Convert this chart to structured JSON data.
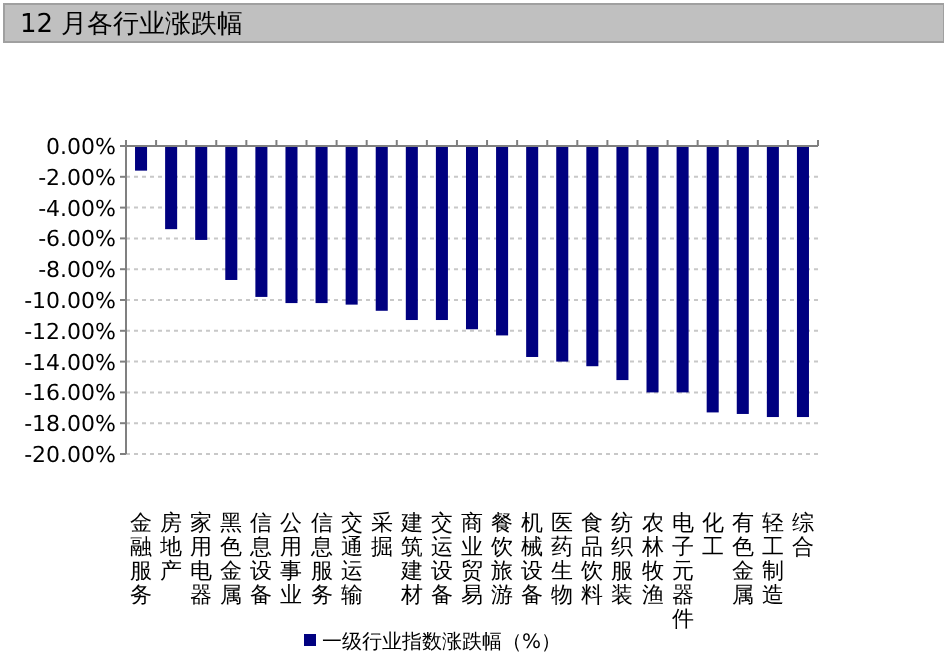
{
  "chart_data": {
    "type": "bar",
    "title": "12 月各行业涨跌幅",
    "categories": [
      "金融服务",
      "房地产",
      "家用电器",
      "黑色金属",
      "信息设备",
      "公用事业",
      "信息服务",
      "交通运输",
      "采掘",
      "建筑建材",
      "交运设备",
      "商业贸易",
      "餐饮旅游",
      "机械设备",
      "医药生物",
      "食品饮料",
      "纺织服装",
      "农林牧渔",
      "电子元器件",
      "化工",
      "有色金属",
      "轻工制造",
      "综合"
    ],
    "series": [
      {
        "name": "一级行业指数涨跌幅（%）",
        "color": "#000080",
        "values": [
          -1.6,
          -5.4,
          -6.1,
          -8.7,
          -9.8,
          -10.2,
          -10.2,
          -10.3,
          -10.7,
          -11.3,
          -11.3,
          -11.9,
          -12.3,
          -13.7,
          -14.0,
          -14.3,
          -15.2,
          -16.0,
          -16.0,
          -17.3,
          -17.4,
          -17.6,
          -17.6
        ]
      }
    ],
    "ylim": [
      -20,
      0
    ],
    "yticks": [
      {
        "value": 0,
        "label": "0.00%"
      },
      {
        "value": -2,
        "label": "-2.00%"
      },
      {
        "value": -4,
        "label": "-4.00%"
      },
      {
        "value": -6,
        "label": "-6.00%"
      },
      {
        "value": -8,
        "label": "-8.00%"
      },
      {
        "value": -10,
        "label": "-10.00%"
      },
      {
        "value": -12,
        "label": "-12.00%"
      },
      {
        "value": -14,
        "label": "-14.00%"
      },
      {
        "value": -16,
        "label": "-16.00%"
      },
      {
        "value": -18,
        "label": "-18.00%"
      },
      {
        "value": -20,
        "label": "-20.00%"
      }
    ],
    "grid": "y",
    "legend": "bottom"
  }
}
